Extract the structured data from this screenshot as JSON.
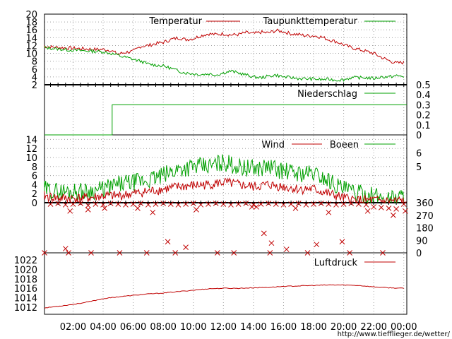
{
  "colors": {
    "temperature": "#c00000",
    "dewpoint": "#00a000",
    "rain": "#00a000",
    "wind": "#c00000",
    "gusts": "#00a000",
    "pressure": "#c00000",
    "grid": "#a0a0a0",
    "frame": "#000000"
  },
  "footer": {
    "url": "http://www.tiefflieger.de/wetter/"
  },
  "chart_data": [
    {
      "id": "temperature",
      "type": "line",
      "x_ticks": [
        "02:00",
        "04:00",
        "06:00",
        "08:00",
        "10:00",
        "12:00",
        "14:00",
        "16:00",
        "18:00",
        "20:00",
        "22:00",
        "00:00"
      ],
      "x_tick_hours": [
        2,
        4,
        6,
        8,
        10,
        12,
        14,
        16,
        18,
        20,
        22,
        24
      ],
      "xlim": [
        0.1,
        24.2
      ],
      "ylim": [
        2,
        20
      ],
      "y_ticks": [
        2,
        4,
        6,
        8,
        10,
        12,
        14,
        16,
        18,
        20
      ],
      "grid": true,
      "legend_position": "top",
      "series": [
        {
          "name": "Temperatur",
          "x": [
            0,
            1,
            2,
            3,
            3.5,
            4,
            4.5,
            5,
            5.2,
            5.5,
            6,
            6.5,
            7,
            7.5,
            8,
            8.5,
            9,
            9.5,
            10,
            10.5,
            11,
            11.5,
            12,
            12.5,
            13,
            13.5,
            14,
            14.5,
            15,
            15.5,
            16,
            16.5,
            17,
            17.5,
            18,
            18.5,
            19,
            19.5,
            20,
            20.5,
            21,
            21.5,
            22,
            22.5,
            23,
            23.5,
            24
          ],
          "y": [
            11.8,
            11.5,
            11.3,
            11.1,
            11,
            11,
            10.8,
            9.8,
            10,
            10.3,
            10.5,
            11.8,
            12,
            12.5,
            12.8,
            13.5,
            14,
            13.5,
            13.8,
            14.5,
            15,
            14.8,
            15,
            14.7,
            14.8,
            15.3,
            15,
            15.4,
            15.2,
            15.8,
            15.5,
            15,
            14.8,
            14.5,
            14.5,
            14.2,
            13.5,
            13,
            12.2,
            11.5,
            11,
            10.5,
            10,
            9,
            8.2,
            7.5,
            7.7
          ]
        },
        {
          "name": "Taupunkttemperatur",
          "x": [
            0,
            1,
            2,
            3,
            3.5,
            4,
            4.5,
            5,
            5.2,
            5.5,
            6,
            6.5,
            7,
            7.5,
            8,
            8.5,
            9,
            9.5,
            10,
            10.5,
            11,
            11.5,
            12,
            12.5,
            13,
            13.5,
            14,
            14.5,
            15,
            15.5,
            16,
            16.5,
            17,
            17.5,
            18,
            18.5,
            19,
            19.5,
            20,
            20.5,
            21,
            21.5,
            22,
            22.5,
            23,
            23.5,
            24
          ],
          "y": [
            11.5,
            11.1,
            10.8,
            10.6,
            10.5,
            10.4,
            10,
            9.5,
            9.2,
            9,
            8.5,
            8,
            7.3,
            7,
            6.8,
            6.2,
            5.5,
            5,
            4.8,
            4.6,
            4.8,
            4.5,
            5,
            5.5,
            5,
            4.5,
            4,
            3.8,
            4.2,
            4.5,
            4,
            3.8,
            3.6,
            3.5,
            3.5,
            3.3,
            3.4,
            3.2,
            3.3,
            3.8,
            3.8,
            3.8,
            3.6,
            4,
            4,
            4.3,
            4.1
          ]
        }
      ]
    },
    {
      "id": "rain",
      "type": "line",
      "xlim": [
        0.1,
        24.2
      ],
      "ylim": [
        0,
        0.5
      ],
      "y_ticks": [
        0,
        0.1,
        0.2,
        0.3,
        0.4,
        0.5
      ],
      "y_axis_side": "right",
      "grid": false,
      "legend_position": "top",
      "series": [
        {
          "name": "Niederschlag",
          "x": [
            0.1,
            4.6,
            4.6,
            24.2
          ],
          "y": [
            0,
            0,
            0.3,
            0.3
          ]
        }
      ]
    },
    {
      "id": "wind",
      "type": "line",
      "xlim": [
        0.1,
        24.2
      ],
      "ylim": [
        0,
        15
      ],
      "y_ticks": [
        0,
        2,
        4,
        6,
        8,
        10,
        12,
        14
      ],
      "y2_ticks": [
        5,
        6
      ],
      "grid": true,
      "legend_position": "top",
      "series": [
        {
          "name": "Wind",
          "x": [
            0,
            1,
            2,
            3,
            4,
            5,
            6,
            7,
            8,
            9,
            10,
            11,
            12,
            13,
            14,
            15,
            16,
            17,
            18,
            19,
            20,
            21,
            22,
            23,
            24
          ],
          "y": [
            1.5,
            1,
            1,
            1,
            1.5,
            1.5,
            2,
            2.5,
            3,
            3.5,
            3.8,
            4,
            4.5,
            4,
            3.5,
            4,
            3.5,
            3,
            3,
            2,
            1,
            0.5,
            0.5,
            0.3,
            0.5
          ]
        },
        {
          "name": "Boeen",
          "x": [
            0,
            1,
            2,
            3,
            4,
            5,
            6,
            7,
            8,
            9,
            10,
            11,
            12,
            13,
            14,
            15,
            16,
            17,
            18,
            19,
            20,
            21,
            22,
            23,
            24
          ],
          "y": [
            3,
            2.5,
            2.5,
            2.5,
            3,
            4,
            4.5,
            5,
            6,
            7.5,
            8,
            8,
            9,
            8,
            7.5,
            8,
            7,
            6.5,
            6.5,
            5,
            3,
            2,
            1.5,
            1,
            1.5
          ]
        }
      ]
    },
    {
      "id": "direction",
      "type": "scatter",
      "xlim": [
        0.1,
        24.2
      ],
      "ylim": [
        0,
        360
      ],
      "y_ticks": [
        0,
        90,
        180,
        270,
        360
      ],
      "y_axis_side": "right",
      "grid": false,
      "series": [
        {
          "name": "",
          "x": [
            0.5,
            1,
            1.5,
            2,
            2.5,
            3,
            3.5,
            4,
            4.5,
            5,
            5.5,
            6,
            6.5,
            7,
            7.5,
            8,
            8.5,
            9,
            9.5,
            10,
            10.5,
            11,
            11.5,
            12,
            12.5,
            13,
            13.5,
            14,
            14.5,
            15,
            15.5,
            16,
            16.5,
            17,
            17.5,
            18,
            18.5,
            19,
            19.5,
            20,
            20.5,
            21,
            21.5,
            22,
            22.5,
            23,
            23.5,
            24,
            1.8,
            3,
            4.1,
            6.3,
            7.3,
            10.2,
            13.9,
            14.2,
            16.8,
            19,
            21.6,
            23.3,
            24.1,
            1.5,
            8.3,
            9.5,
            14.7,
            15.2,
            16.2,
            18.2,
            19.9,
            0.1,
            1.7,
            3.2,
            5.1,
            6.9,
            8.8,
            11.6,
            12.7,
            15.1,
            17.6,
            20.4,
            22.6
          ],
          "y": [
            350,
            355,
            345,
            350,
            355,
            340,
            350,
            345,
            355,
            350,
            345,
            350,
            355,
            345,
            350,
            355,
            350,
            345,
            350,
            355,
            345,
            350,
            355,
            350,
            345,
            350,
            355,
            345,
            350,
            355,
            350,
            345,
            350,
            355,
            345,
            350,
            355,
            350,
            345,
            350,
            355,
            350,
            345,
            330,
            325,
            320,
            315,
            350,
            300,
            310,
            320,
            320,
            290,
            310,
            330,
            330,
            320,
            290,
            300,
            270,
            300,
            30,
            80,
            40,
            140,
            70,
            25,
            60,
            80,
            0,
            0,
            0,
            0,
            0,
            0,
            0,
            0,
            0,
            0,
            0,
            0
          ]
        }
      ]
    },
    {
      "id": "pressure",
      "type": "line",
      "xlim": [
        0.1,
        24.2
      ],
      "ylim": [
        1010.5,
        1023.5
      ],
      "y_ticks": [
        1012,
        1014,
        1016,
        1018,
        1020,
        1022
      ],
      "grid": false,
      "legend_position": "top",
      "series": [
        {
          "name": "Luftdruck",
          "x": [
            0,
            1,
            2,
            3,
            4,
            5,
            6,
            7,
            8,
            9,
            10,
            11,
            12,
            13,
            14,
            15,
            16,
            17,
            18,
            19,
            20,
            21,
            22,
            23,
            24
          ],
          "y": [
            1011.8,
            1012.2,
            1012.6,
            1013.1,
            1013.8,
            1014.2,
            1014.5,
            1014.8,
            1015,
            1015.3,
            1015.6,
            1015.9,
            1016,
            1016,
            1016.1,
            1016.2,
            1016.4,
            1016.5,
            1016.6,
            1016.7,
            1016.7,
            1016.6,
            1016.3,
            1016.1,
            1016
          ]
        }
      ]
    }
  ]
}
